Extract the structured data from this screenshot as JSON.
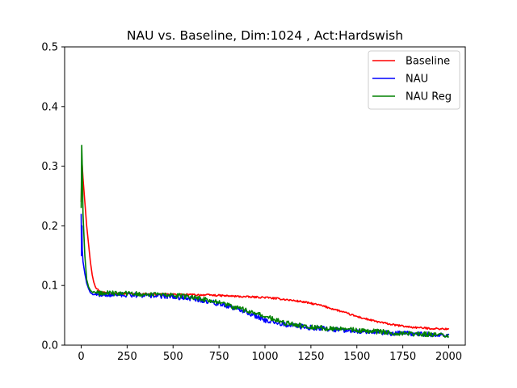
{
  "chart_data": {
    "type": "line",
    "title": "NAU vs. Baseline, Dim:1024 , Act:Hardswish",
    "xlabel": "",
    "ylabel": "",
    "xlim": [
      -90,
      2090
    ],
    "ylim": [
      0,
      0.5
    ],
    "xticks": [
      0,
      250,
      500,
      750,
      1000,
      1250,
      1500,
      1750,
      2000
    ],
    "xtick_labels": [
      "0",
      "250",
      "500",
      "750",
      "1000",
      "1250",
      "1500",
      "1750",
      "2000"
    ],
    "yticks": [
      0.0,
      0.1,
      0.2,
      0.3,
      0.4,
      0.5
    ],
    "ytick_labels": [
      "0.0",
      "0.1",
      "0.2",
      "0.3",
      "0.4",
      "0.5"
    ],
    "grid": false,
    "legend_position": "top-right",
    "series": [
      {
        "name": "Baseline",
        "color": "#ff0000",
        "noise": 0.0015,
        "points": [
          [
            0,
            0.24
          ],
          [
            4,
            0.31
          ],
          [
            10,
            0.28
          ],
          [
            20,
            0.24
          ],
          [
            30,
            0.2
          ],
          [
            40,
            0.17
          ],
          [
            50,
            0.14
          ],
          [
            60,
            0.118
          ],
          [
            70,
            0.105
          ],
          [
            80,
            0.097
          ],
          [
            100,
            0.09
          ],
          [
            150,
            0.087
          ],
          [
            300,
            0.086
          ],
          [
            500,
            0.085
          ],
          [
            700,
            0.084
          ],
          [
            900,
            0.081
          ],
          [
            1000,
            0.08
          ],
          [
            1100,
            0.077
          ],
          [
            1200,
            0.073
          ],
          [
            1300,
            0.067
          ],
          [
            1400,
            0.058
          ],
          [
            1500,
            0.048
          ],
          [
            1600,
            0.04
          ],
          [
            1700,
            0.034
          ],
          [
            1800,
            0.03
          ],
          [
            1900,
            0.028
          ],
          [
            2000,
            0.027
          ]
        ]
      },
      {
        "name": "NAU",
        "color": "#0000ff",
        "noise": 0.004,
        "points": [
          [
            0,
            0.22
          ],
          [
            2,
            0.15
          ],
          [
            4,
            0.2
          ],
          [
            6,
            0.16
          ],
          [
            10,
            0.14
          ],
          [
            20,
            0.12
          ],
          [
            30,
            0.104
          ],
          [
            40,
            0.095
          ],
          [
            50,
            0.088
          ],
          [
            60,
            0.086
          ],
          [
            100,
            0.085
          ],
          [
            200,
            0.085
          ],
          [
            300,
            0.084
          ],
          [
            400,
            0.083
          ],
          [
            500,
            0.081
          ],
          [
            600,
            0.078
          ],
          [
            700,
            0.073
          ],
          [
            800,
            0.065
          ],
          [
            900,
            0.055
          ],
          [
            1000,
            0.042
          ],
          [
            1100,
            0.035
          ],
          [
            1200,
            0.031
          ],
          [
            1300,
            0.028
          ],
          [
            1400,
            0.026
          ],
          [
            1500,
            0.024
          ],
          [
            1600,
            0.022
          ],
          [
            1700,
            0.02
          ],
          [
            1800,
            0.019
          ],
          [
            1900,
            0.018
          ],
          [
            2000,
            0.016
          ]
        ]
      },
      {
        "name": "NAU Reg",
        "color": "#008000",
        "noise": 0.004,
        "points": [
          [
            0,
            0.23
          ],
          [
            3,
            0.335
          ],
          [
            6,
            0.3
          ],
          [
            10,
            0.22
          ],
          [
            20,
            0.15
          ],
          [
            30,
            0.11
          ],
          [
            40,
            0.098
          ],
          [
            50,
            0.092
          ],
          [
            60,
            0.089
          ],
          [
            100,
            0.087
          ],
          [
            200,
            0.087
          ],
          [
            300,
            0.086
          ],
          [
            400,
            0.085
          ],
          [
            500,
            0.083
          ],
          [
            600,
            0.081
          ],
          [
            700,
            0.075
          ],
          [
            800,
            0.067
          ],
          [
            900,
            0.058
          ],
          [
            1000,
            0.048
          ],
          [
            1100,
            0.038
          ],
          [
            1200,
            0.033
          ],
          [
            1300,
            0.029
          ],
          [
            1400,
            0.027
          ],
          [
            1500,
            0.025
          ],
          [
            1600,
            0.023
          ],
          [
            1700,
            0.021
          ],
          [
            1800,
            0.019
          ],
          [
            1900,
            0.018
          ],
          [
            2000,
            0.017
          ]
        ]
      }
    ]
  }
}
